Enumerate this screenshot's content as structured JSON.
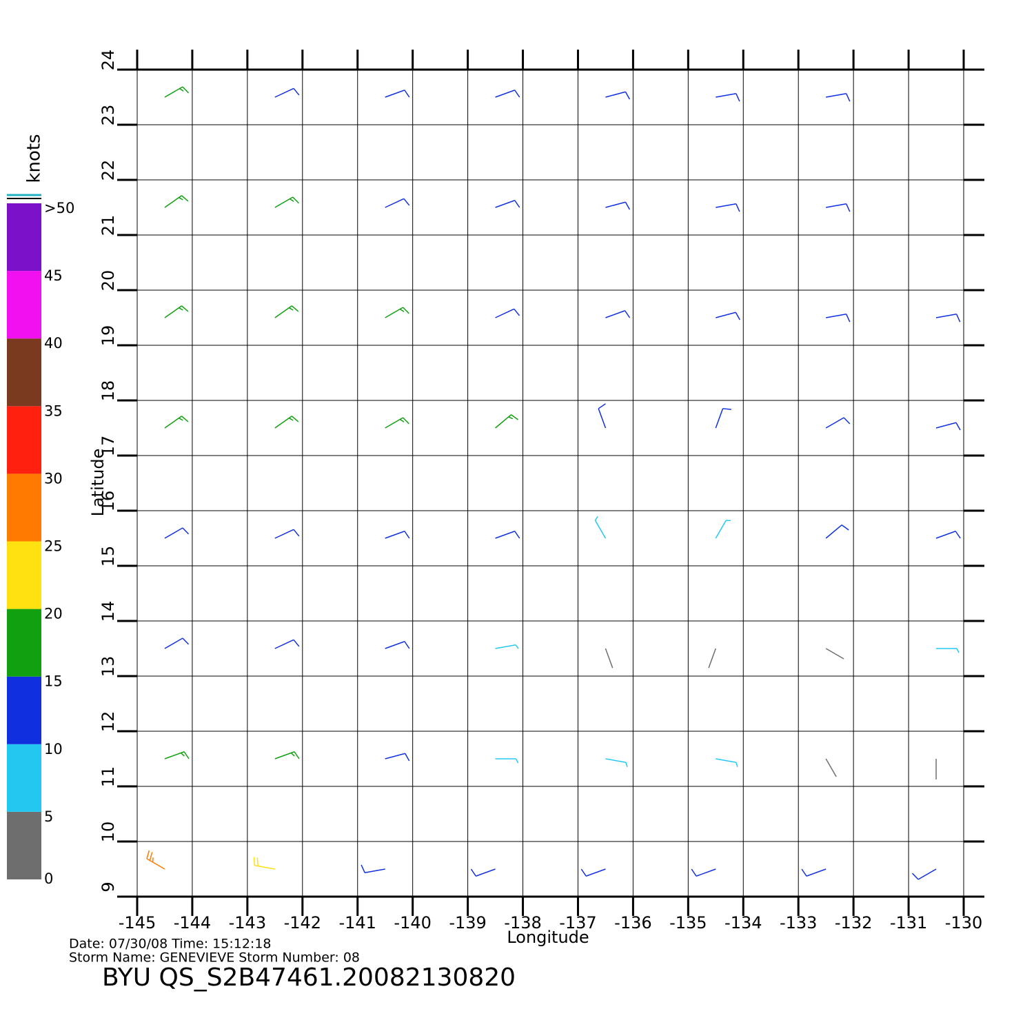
{
  "chart_data": {
    "type": "wind-barb",
    "xlabel": "Longitude",
    "ylabel": "Latitude",
    "xlim": [
      -145,
      -130
    ],
    "ylim": [
      9,
      24
    ],
    "xticks": [
      -145,
      -144,
      -143,
      -142,
      -141,
      -140,
      -139,
      -138,
      -137,
      -136,
      -135,
      -134,
      -133,
      -132,
      -131,
      -130
    ],
    "yticks": [
      9,
      10,
      11,
      12,
      13,
      14,
      15,
      16,
      17,
      18,
      19,
      20,
      21,
      22,
      23,
      24
    ],
    "grid": true,
    "colorbar": {
      "label": "knots",
      "bounds": [
        0,
        5,
        10,
        15,
        20,
        25,
        30,
        35,
        40,
        45,
        50
      ],
      "colors": [
        "#6e6e6e",
        "#22c8f0",
        "#1030e0",
        "#10a010",
        "#ffe010",
        "#ff7a00",
        "#ff2010",
        "#7a3a20",
        "#f010f0",
        "#7a10c8"
      ],
      "ticks": [
        0,
        5,
        10,
        15,
        20,
        25,
        30,
        35,
        40,
        45,
        {
          "value": 50,
          "label": ">50"
        }
      ]
    },
    "wind": {
      "lon": [
        -144.5,
        -142.5,
        -140.5,
        -138.5,
        -136.5,
        -134.5,
        -132.5,
        -144.5,
        -142.5,
        -140.5,
        -138.5,
        -136.5,
        -134.5,
        -132.5,
        -144.5,
        -142.5,
        -140.5,
        -138.5,
        -136.5,
        -134.5,
        -132.5,
        -130.5,
        -144.5,
        -142.5,
        -140.5,
        -138.5,
        -136.5,
        -134.5,
        -132.5,
        -130.5,
        -144.5,
        -142.5,
        -140.5,
        -138.5,
        -136.5,
        -134.5,
        -132.5,
        -130.5,
        -144.5,
        -142.5,
        -140.5,
        -138.5,
        -136.5,
        -134.5,
        -132.5,
        -130.5,
        -144.5,
        -142.5,
        -140.5,
        -138.5,
        -136.5,
        -134.5,
        -132.5,
        -130.5,
        -144.5,
        -142.5,
        -140.5,
        -138.5,
        -136.5,
        -134.5,
        -132.5,
        -130.5
      ],
      "lat": [
        23.5,
        23.5,
        23.5,
        23.5,
        23.5,
        23.5,
        23.5,
        21.5,
        21.5,
        21.5,
        21.5,
        21.5,
        21.5,
        21.5,
        19.5,
        19.5,
        19.5,
        19.5,
        19.5,
        19.5,
        19.5,
        19.5,
        17.5,
        17.5,
        17.5,
        17.5,
        17.5,
        17.5,
        17.5,
        17.5,
        15.5,
        15.5,
        15.5,
        15.5,
        15.5,
        15.5,
        15.5,
        15.5,
        13.5,
        13.5,
        13.5,
        13.5,
        13.5,
        13.5,
        13.5,
        13.5,
        11.5,
        11.5,
        11.5,
        11.5,
        11.5,
        11.5,
        11.5,
        11.5,
        9.5,
        9.5,
        9.5,
        9.5,
        9.5,
        9.5,
        9.5,
        9.5
      ],
      "speed": [
        16,
        14,
        13,
        13,
        13,
        12,
        12,
        17,
        16,
        14,
        13,
        12,
        12,
        12,
        17,
        17,
        16,
        14,
        13,
        12,
        12,
        12,
        17,
        17,
        16,
        18,
        13,
        12,
        12,
        12,
        14,
        13,
        12,
        12,
        8,
        8,
        11,
        11,
        13,
        12,
        11,
        7,
        4,
        3,
        4,
        8,
        16,
        15,
        12,
        9,
        7,
        7,
        4,
        3,
        27,
        22,
        13,
        12,
        11,
        13,
        12,
        10
      ],
      "direction": [
        60,
        65,
        70,
        70,
        75,
        80,
        80,
        55,
        60,
        65,
        70,
        75,
        80,
        80,
        55,
        55,
        60,
        65,
        70,
        75,
        80,
        80,
        55,
        55,
        60,
        50,
        340,
        20,
        60,
        75,
        60,
        65,
        70,
        70,
        330,
        30,
        50,
        70,
        60,
        65,
        70,
        80,
        160,
        200,
        120,
        90,
        70,
        70,
        75,
        90,
        100,
        100,
        150,
        180,
        300,
        280,
        260,
        250,
        250,
        250,
        250,
        240
      ]
    },
    "footer": [
      "Date: 07/30/08   Time: 15:12:18",
      "Storm  Name: GENEVIEVE    Storm  Number: 08"
    ],
    "title": "BYU  QS_S2B47461.20082130820"
  }
}
